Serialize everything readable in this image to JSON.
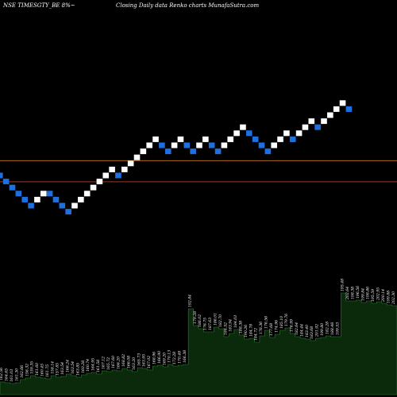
{
  "header": {
    "symbol_text": "NSE TIMESGTY_BE 8%~",
    "subtitle_text": "Closing Daily data  Renko  charts MunafaSutra.com"
  },
  "colors": {
    "background": "#000000",
    "up_brick": "#ffffff",
    "down_brick": "#1e6fe0",
    "support_line": "#c8781e",
    "resistance_line": "#b0452c",
    "volume_fill": "#0b2a0b",
    "volume_edge": "#2e7d32"
  },
  "chart_data": [
    {
      "type": "renko",
      "directions": [
        "down",
        "down",
        "down",
        "down",
        "down",
        "down",
        "up",
        "up",
        "down",
        "down",
        "down",
        "down",
        "up",
        "up",
        "up",
        "up",
        "up",
        "up",
        "up",
        "down",
        "up",
        "up",
        "up",
        "up",
        "up",
        "up",
        "down",
        "down",
        "up",
        "up",
        "down",
        "down",
        "up",
        "up",
        "down",
        "down",
        "up",
        "up",
        "up",
        "up",
        "down",
        "down",
        "down",
        "down",
        "up",
        "up",
        "up",
        "down",
        "up",
        "up",
        "up",
        "down",
        "up",
        "up",
        "up",
        "up",
        "down"
      ],
      "levels": [
        30,
        29,
        28,
        27,
        26,
        25,
        26,
        27,
        27,
        26,
        25,
        24,
        25,
        26,
        27,
        28,
        29,
        30,
        31,
        30,
        31,
        32,
        33,
        34,
        35,
        36,
        35,
        34,
        35,
        36,
        35,
        34,
        35,
        36,
        35,
        34,
        35,
        36,
        37,
        38,
        37,
        36,
        35,
        34,
        35,
        36,
        37,
        36,
        37,
        38,
        39,
        38,
        39,
        40,
        41,
        42,
        41
      ],
      "support_level": 32.5,
      "resistance_level": 29.0
    },
    {
      "type": "bar",
      "title": "volume",
      "labels": [
        "162.56",
        "164.65",
        "161.03",
        "161.30",
        "162.66",
        "156.32",
        "159.35",
        "161.60",
        "160.45",
        "161.75",
        "158.14",
        "157.85",
        "163.54",
        "166.24",
        "163.54",
        "163.85",
        "160.28",
        "160.74",
        "164.95",
        "161.58",
        "167.12",
        "165.72",
        "167.60",
        "166.20",
        "168.82",
        "166.08",
        "163.20",
        "165.73",
        "163.95",
        "167.02",
        "168.96",
        "166.90",
        "169.20",
        "170.13",
        "172.28",
        "170.48",
        "166.38",
        "192.84",
        "179.28",
        "186.02",
        "176.75",
        "187.63",
        "186.01",
        "182.70",
        "184.52",
        "183.94",
        "184.03",
        "188.38",
        "190.26",
        "184.78",
        "184.72",
        "176.36",
        "176.56",
        "177.68",
        "174.96",
        "185.10",
        "179.76",
        "176.99",
        "182.64",
        "184.44",
        "183.40",
        "183.68",
        "201.92",
        "199.80",
        "182.28",
        "188.48",
        "199.53",
        "195.48",
        "202.64",
        "198.38",
        "196.56",
        "199.84",
        "198.86",
        "195.59",
        "202.95",
        "200.14",
        "199.88",
        "202.30"
      ],
      "values": [
        16,
        15,
        14,
        15,
        19,
        21,
        24,
        22,
        21,
        20,
        24,
        22,
        23,
        26,
        24,
        22,
        25,
        27,
        28,
        26,
        30,
        29,
        31,
        30,
        33,
        31,
        29,
        34,
        33,
        31,
        36,
        37,
        35,
        38,
        36,
        37,
        38,
        108,
        87,
        83,
        79,
        79,
        85,
        83,
        73,
        77,
        82,
        75,
        70,
        71,
        66,
        74,
        81,
        72,
        76,
        81,
        84,
        77,
        73,
        71,
        70,
        68,
        71,
        72,
        74,
        73,
        73,
        128,
        118,
        118,
        119,
        116,
        118,
        115,
        117,
        115,
        113,
        112
      ]
    }
  ]
}
